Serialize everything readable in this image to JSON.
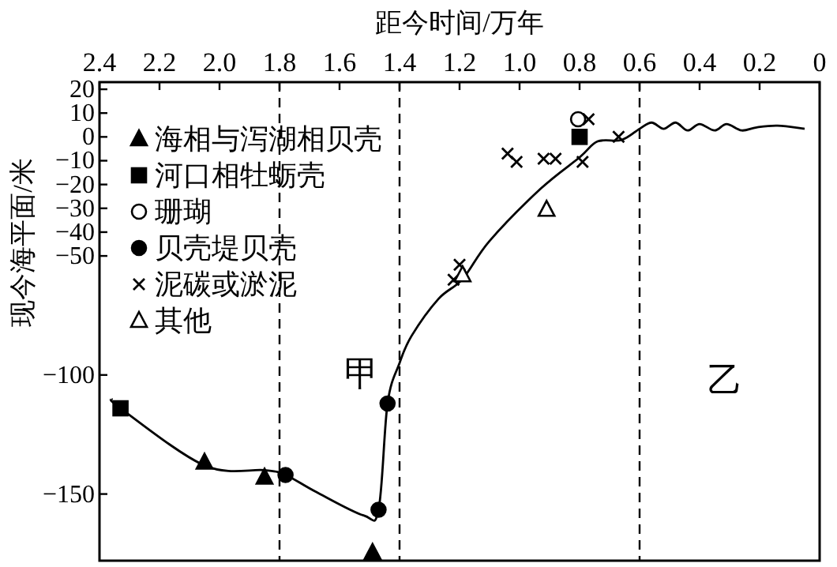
{
  "chart_data": {
    "type": "scatter",
    "xlabel": "距今时间/万年",
    "ylabel": "现今海平面/米",
    "xlim": [
      2.4,
      0
    ],
    "xticks": [
      2.4,
      2.2,
      {
        "value": 2,
        "label": "2.0"
      },
      1.8,
      1.6,
      1.4,
      1.2,
      {
        "value": 1,
        "label": "1.0"
      },
      0.8,
      0.6,
      0.4,
      0.2,
      0
    ],
    "ylim": [
      -178,
      23
    ],
    "yticks": [
      20,
      10,
      0,
      {
        "value": -10,
        "label": "−10"
      },
      {
        "value": -20,
        "label": "−20"
      },
      {
        "value": -30,
        "label": "−30"
      },
      {
        "value": -40,
        "label": "−40"
      },
      {
        "value": -50,
        "label": "−50"
      },
      {
        "value": -100,
        "label": "−100"
      },
      {
        "value": -150,
        "label": "−150"
      }
    ],
    "grid": false,
    "legend": "top left",
    "series": [
      {
        "type": "line",
        "color": "#000000",
        "marker": "none",
        "line_style": "solid",
        "x": [
          2.36,
          2.33,
          2.05,
          1.85,
          1.78,
          1.68,
          1.52,
          1.47,
          1.44,
          1.4,
          1.36,
          1.27,
          1.19,
          1.1,
          0.93,
          0.8,
          0.74,
          0.66,
          0.6,
          0.56,
          0.52,
          0.48,
          0.44,
          0.4,
          0.35,
          0.31,
          0.26,
          0.21,
          0.14,
          0.05
        ],
        "values": [
          -110,
          -114,
          -138,
          -140,
          -142,
          -149,
          -159,
          -156.6,
          -112,
          -95,
          -83.6,
          -68,
          -59.7,
          -43.7,
          -21.8,
          -8.6,
          -1.9,
          -1.3,
          3.4,
          6,
          3.4,
          6,
          2.7,
          5.4,
          2.7,
          5.4,
          2.7,
          4,
          4.7,
          3.4
        ]
      },
      {
        "name": "海相与泻湖相贝壳",
        "color": "#000000",
        "marker": "triangle",
        "x": [
          2.05,
          1.85,
          1.49
        ],
        "values": [
          -136.7,
          -143,
          -174.6
        ]
      },
      {
        "name": "河口相牡蛎壳",
        "color": "#000000",
        "marker": "square",
        "x": [
          2.33,
          0.8
        ],
        "values": [
          -114,
          0
        ]
      },
      {
        "name": "珊瑚",
        "color": "#000000",
        "marker": "circle-open",
        "x": [
          0.805
        ],
        "values": [
          7.4
        ]
      },
      {
        "name": "贝壳堤贝壳",
        "color": "#000000",
        "marker": "circle",
        "x": [
          1.78,
          1.47,
          1.44
        ],
        "values": [
          -142,
          -156.6,
          -112
        ]
      },
      {
        "name": "泥碳或淤泥",
        "color": "#000000",
        "marker": "cross",
        "x": [
          1.04,
          1.01,
          0.92,
          0.88,
          0.79,
          0.77,
          0.67,
          1.2,
          1.22
        ],
        "values": [
          -7,
          -10.5,
          -9.2,
          -9.2,
          -10.5,
          7.4,
          0,
          -53.7,
          -60
        ]
      },
      {
        "name": "其他",
        "color": "#000000",
        "marker": "triangle-open",
        "x": [
          0.91,
          1.19
        ],
        "values": [
          -30.5,
          -58
        ]
      }
    ],
    "ref_lines": [
      {
        "axis": "x",
        "value": 1.8,
        "line_style": "dashed"
      },
      {
        "axis": "x",
        "value": 1.4,
        "line_style": "dashed"
      },
      {
        "axis": "x",
        "value": 0.6,
        "line_style": "dashed"
      }
    ],
    "annotations": [
      "甲",
      "乙"
    ]
  }
}
